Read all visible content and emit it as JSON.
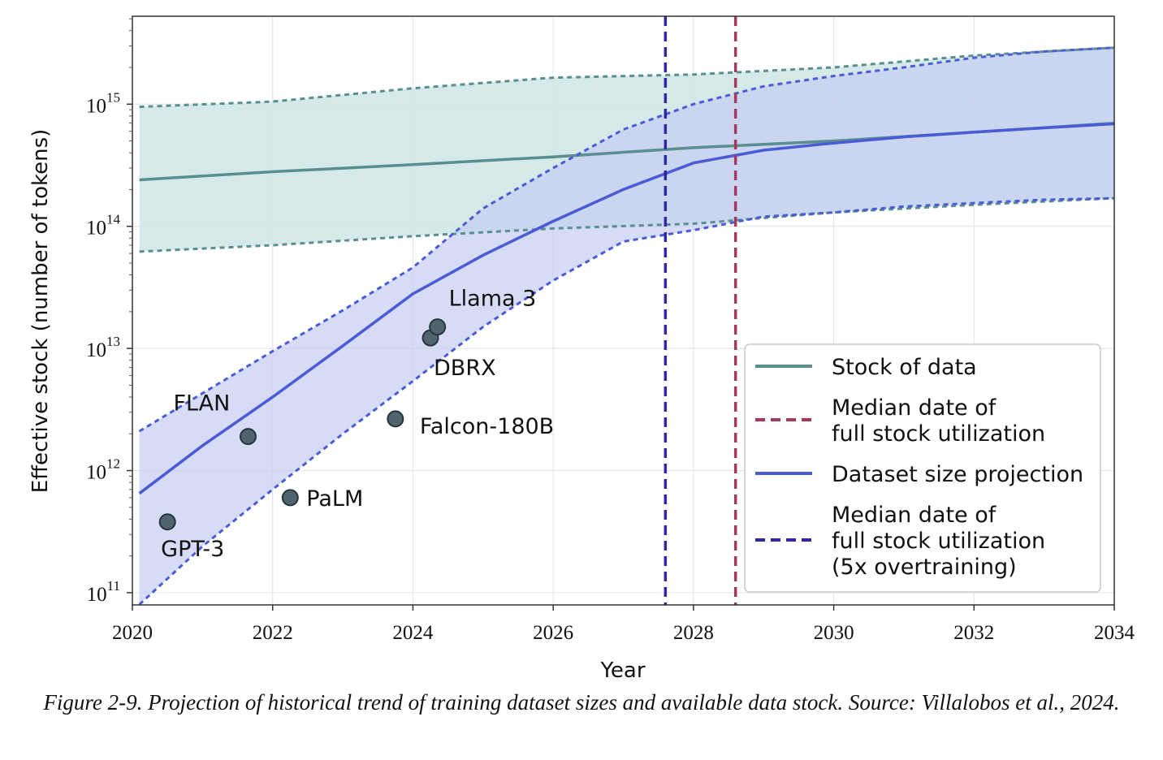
{
  "chart_data": {
    "type": "line",
    "xlabel": "Year",
    "ylabel": "Effective stock (number of tokens)",
    "xlim": [
      2020,
      2034
    ],
    "ylim_log10": [
      10.9,
      15.72
    ],
    "y_scale": "log",
    "grid": true,
    "legend_position": "bottom-right",
    "x_ticks": [
      "2020",
      "2022",
      "2024",
      "2026",
      "2028",
      "2030",
      "2032",
      "2034"
    ],
    "x_tick_values": [
      2020,
      2022,
      2024,
      2026,
      2028,
      2030,
      2032,
      2034
    ],
    "y_ticks": [
      {
        "base": "10",
        "exp": "11",
        "log10": 11
      },
      {
        "base": "10",
        "exp": "12",
        "log10": 12
      },
      {
        "base": "10",
        "exp": "13",
        "log10": 13
      },
      {
        "base": "10",
        "exp": "14",
        "log10": 14
      },
      {
        "base": "10",
        "exp": "15",
        "log10": 15
      }
    ],
    "series": [
      {
        "name": "Stock of data",
        "color": "#5a8f8f",
        "band_color": "#cfe5e5",
        "x": [
          2020.1,
          2022,
          2024,
          2026,
          2028,
          2030,
          2032,
          2034
        ],
        "median": [
          240000000000000.0,
          280000000000000.0,
          320000000000000.0,
          370000000000000.0,
          440000000000000.0,
          500000000000000.0,
          590000000000000.0,
          700000000000000.0
        ],
        "upper": [
          950000000000000.0,
          1050000000000000.0,
          1350000000000000.0,
          1650000000000000.0,
          1750000000000000.0,
          2000000000000000.0,
          2500000000000000.0,
          2900000000000000.0
        ],
        "lower": [
          62000000000000.0,
          70000000000000.0,
          83000000000000.0,
          96000000000000.0,
          105000000000000.0,
          130000000000000.0,
          150000000000000.0,
          170000000000000.0
        ]
      },
      {
        "name": "Dataset size projection",
        "color": "#4b5bd6",
        "band_color": "#c4ccf2",
        "x": [
          2020.1,
          2021,
          2022,
          2023,
          2024,
          2025,
          2026,
          2027,
          2028,
          2029,
          2030,
          2031,
          2032,
          2033,
          2034
        ],
        "median": [
          650000000000.0,
          1600000000000.0,
          4000000000000.0,
          10500000000000.0,
          28000000000000.0,
          58000000000000.0,
          110000000000000.0,
          200000000000000.0,
          330000000000000.0,
          420000000000000.0,
          480000000000000.0,
          540000000000000.0,
          590000000000000.0,
          640000000000000.0,
          690000000000000.0
        ],
        "upper": [
          2100000000000.0,
          4300000000000.0,
          9500000000000.0,
          20500000000000.0,
          46000000000000.0,
          140000000000000.0,
          300000000000000.0,
          620000000000000.0,
          1000000000000000.0,
          1400000000000000.0,
          1700000000000000.0,
          2000000000000000.0,
          2400000000000000.0,
          2700000000000000.0,
          2900000000000000.0
        ],
        "lower": [
          80000000000.0,
          240000000000.0,
          700000000000.0,
          2000000000000.0,
          5400000000000.0,
          15000000000000.0,
          36000000000000.0,
          75000000000000.0,
          93000000000000.0,
          120000000000000.0,
          130000000000000.0,
          145000000000000.0,
          155000000000000.0,
          165000000000000.0,
          170000000000000.0
        ]
      }
    ],
    "vlines": [
      {
        "name": "Median date of full stock utilization",
        "x": 2028.6,
        "color": "#a5385e"
      },
      {
        "name": "Median date of full stock utilization (5x overtraining)",
        "x": 2027.6,
        "color": "#3325a8"
      }
    ],
    "points": [
      {
        "label": "GPT-3",
        "x": 2020.5,
        "y": 380000000000.0
      },
      {
        "label": "FLAN",
        "x": 2021.65,
        "y": 1900000000000.0
      },
      {
        "label": "PaLM",
        "x": 2022.25,
        "y": 600000000000.0
      },
      {
        "label": "Falcon-180B",
        "x": 2023.75,
        "y": 2650000000000.0
      },
      {
        "label": "DBRX",
        "x": 2024.25,
        "y": 12200000000000.0
      },
      {
        "label": "Llama 3",
        "x": 2024.35,
        "y": 15000000000000.0
      }
    ],
    "legend": [
      {
        "kind": "solid",
        "color": "#5a8f8f",
        "lines": [
          "Stock of data"
        ]
      },
      {
        "kind": "dashed",
        "color": "#a5385e",
        "lines": [
          "Median date of",
          "full stock utilization"
        ]
      },
      {
        "kind": "solid",
        "color": "#4b5bd6",
        "lines": [
          "Dataset size projection"
        ]
      },
      {
        "kind": "dashed",
        "color": "#3325a8",
        "lines": [
          "Median date of",
          "full stock utilization",
          "(5x overtraining)"
        ]
      }
    ]
  },
  "caption": "Figure 2-9. Projection of historical trend of training dataset sizes and available data stock. Source: Villalobos et al., 2024."
}
